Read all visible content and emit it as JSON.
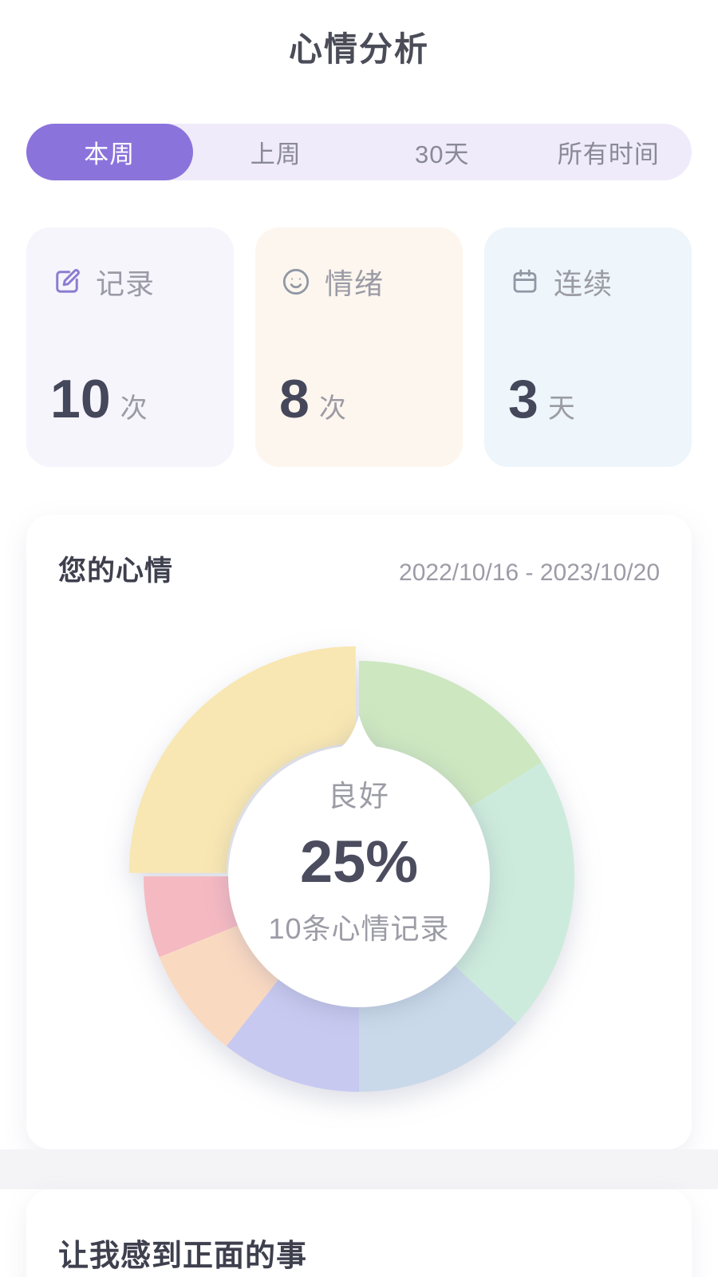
{
  "page": {
    "title": "心情分析"
  },
  "tabs": {
    "container_bg": "#efebfa",
    "active_bg": "#8b73dc",
    "items": [
      {
        "label": "本周",
        "active": true
      },
      {
        "label": "上周",
        "active": false
      },
      {
        "label": "30天",
        "active": false
      },
      {
        "label": "所有时间",
        "active": false
      }
    ]
  },
  "stats": [
    {
      "icon": "edit-icon",
      "label": "记录",
      "value": "10",
      "unit": "次",
      "bg": "#f6f5fc",
      "icon_color": "#8c7cd0"
    },
    {
      "icon": "smile-icon",
      "label": "情绪",
      "value": "8",
      "unit": "次",
      "bg": "#fdf6ee",
      "icon_color": "#9098a4"
    },
    {
      "icon": "calendar-icon",
      "label": "连续",
      "value": "3",
      "unit": "天",
      "bg": "#eef5fb",
      "icon_color": "#9098a4"
    }
  ],
  "mood_card": {
    "title": "您的心情",
    "date_range": "2022/10/16 - 2023/10/20",
    "center": {
      "label": "良好",
      "percent": "25%",
      "sub": "10条心情记录"
    }
  },
  "chart_data": {
    "type": "pie",
    "style": "donut",
    "title": "您的心情",
    "subtitle": "2022/10/16 - 2023/10/20",
    "total_records": 10,
    "center_text": {
      "label": "良好",
      "percent": "25%",
      "sub": "10条心情记录"
    },
    "start_angle_deg": 0,
    "direction": "clockwise",
    "selected_segment": {
      "name": "good",
      "label": "良好",
      "percent": 25
    },
    "segments": [
      {
        "name": "green",
        "color": "#cde7c0",
        "degrees": 58,
        "percent": 16,
        "exploded": false
      },
      {
        "name": "mint",
        "color": "#cdebdc",
        "degrees": 75,
        "percent": 21,
        "exploded": false
      },
      {
        "name": "blue",
        "color": "#c9d9e9",
        "degrees": 47,
        "percent": 13,
        "exploded": false
      },
      {
        "name": "lavender",
        "color": "#c7c9f0",
        "degrees": 38,
        "percent": 11,
        "exploded": false
      },
      {
        "name": "peach",
        "color": "#fad9c1",
        "degrees": 30,
        "percent": 8,
        "exploded": false
      },
      {
        "name": "pink",
        "color": "#f5b9c2",
        "degrees": 22,
        "percent": 6,
        "exploded": false
      },
      {
        "name": "good",
        "label": "良好",
        "color": "#f8e7b2",
        "degrees": 90,
        "percent": 25,
        "exploded": true
      }
    ]
  },
  "positive_card": {
    "title": "让我感到正面的事"
  }
}
